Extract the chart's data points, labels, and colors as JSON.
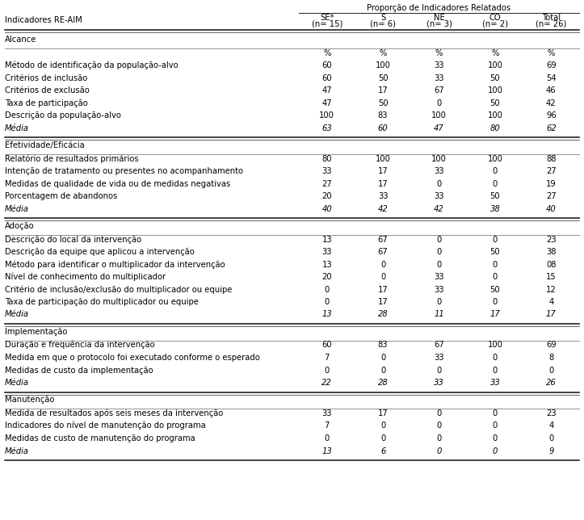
{
  "col_header_main": "Proporção de Indicadores Relatados",
  "col_header_left": "Indicadores RE-AIM",
  "sections": [
    {
      "name": "Alcance",
      "unit_row": [
        "%",
        "%",
        "%",
        "%",
        "%"
      ],
      "rows": [
        [
          "Método de identificação da população-alvo",
          "60",
          "100",
          "33",
          "100",
          "69"
        ],
        [
          "Critérios de inclusão",
          "60",
          "50",
          "33",
          "50",
          "54"
        ],
        [
          "Critérios de exclusão",
          "47",
          "17",
          "67",
          "100",
          "46"
        ],
        [
          "Taxa de participação",
          "47",
          "50",
          "0",
          "50",
          "42"
        ],
        [
          "Descrição da população-alvo",
          "100",
          "83",
          "100",
          "100",
          "96"
        ]
      ],
      "media": [
        "Média",
        "63",
        "60",
        "47",
        "80",
        "62"
      ]
    },
    {
      "name": "Efetividade/Eficácia",
      "unit_row": null,
      "rows": [
        [
          "Relatório de resultados primários",
          "80",
          "100",
          "100",
          "100",
          "88"
        ],
        [
          "Intenção de tratamento ou presentes no acompanhamento",
          "33",
          "17",
          "33",
          "0",
          "27"
        ],
        [
          "Medidas de qualidade de vida ou de medidas negativas",
          "27",
          "17",
          "0",
          "0",
          "19"
        ],
        [
          "Porcentagem de abandonos",
          "20",
          "33",
          "33",
          "50",
          "27"
        ]
      ],
      "media": [
        "Média",
        "40",
        "42",
        "42",
        "38",
        "40"
      ]
    },
    {
      "name": "Adoção",
      "unit_row": null,
      "rows": [
        [
          "Descrição do local da intervenção",
          "13",
          "67",
          "0",
          "0",
          "23"
        ],
        [
          "Descrição da equipe que aplicou a intervenção",
          "33",
          "67",
          "0",
          "50",
          "38"
        ],
        [
          "Método para identificar o multiplicador da intervenção",
          "13",
          "0",
          "0",
          "0",
          "08"
        ],
        [
          "Nível de conhecimento do multiplicador",
          "20",
          "0",
          "33",
          "0",
          "15"
        ],
        [
          "Critério de inclusão/exclusão do multiplicador ou equipe",
          "0",
          "17",
          "33",
          "50",
          "12"
        ],
        [
          "Taxa de participação do multiplicador ou equipe",
          "0",
          "17",
          "0",
          "0",
          "4"
        ]
      ],
      "media": [
        "Média",
        "13",
        "28",
        "11",
        "17",
        "17"
      ]
    },
    {
      "name": "Implementação",
      "unit_row": null,
      "rows": [
        [
          "Duração e frequência da intervenção",
          "60",
          "83",
          "67",
          "100",
          "69"
        ],
        [
          "Medida em que o protocolo foi executado conforme o esperado",
          "7",
          "0",
          "33",
          "0",
          "8"
        ],
        [
          "Medidas de custo da implementação",
          "0",
          "0",
          "0",
          "0",
          "0"
        ]
      ],
      "media": [
        "Média",
        "22",
        "28",
        "33",
        "33",
        "26"
      ]
    },
    {
      "name": "Manutenção",
      "unit_row": null,
      "rows": [
        [
          "Medida de resultados após seis meses da intervenção",
          "33",
          "17",
          "0",
          "0",
          "23"
        ],
        [
          "Indicadores do nível de manutenção do programa",
          "7",
          "0",
          "0",
          "0",
          "4"
        ],
        [
          "Medidas de custo de manutenção do programa",
          "0",
          "0",
          "0",
          "0",
          "0"
        ]
      ],
      "media": [
        "Média",
        "13",
        "6",
        "0",
        "0",
        "9"
      ]
    }
  ],
  "bg_color": "#ffffff",
  "text_color": "#000000",
  "font_size": 7.2,
  "header_font_size": 7.2
}
